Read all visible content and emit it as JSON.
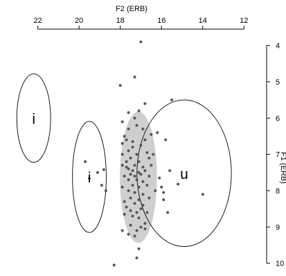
{
  "chart_data": {
    "type": "scatter",
    "xlabel": "F2 (ERB)",
    "ylabel": "F1 (ERB)",
    "x_axis_position": "top",
    "y_axis_position": "right",
    "x_reversed": true,
    "y_reversed": true,
    "xlim": [
      23.5,
      10.9
    ],
    "ylim": [
      3.55,
      10.35
    ],
    "x_ticks": [
      22,
      20,
      18,
      16,
      14,
      12
    ],
    "y_ticks": [
      4,
      5,
      6,
      7,
      8,
      9,
      10
    ],
    "grid": false,
    "ellipses": [
      {
        "label": "i",
        "cx": 22.2,
        "cy": 6.0,
        "rx": 0.82,
        "ry": 1.22,
        "shaded": false
      },
      {
        "label": "ɨ",
        "cx": 19.5,
        "cy": 7.62,
        "rx": 0.82,
        "ry": 1.53,
        "shaded": false
      },
      {
        "label": "u",
        "cx": 14.9,
        "cy": 7.52,
        "rx": 2.29,
        "ry": 2.02,
        "shaded": false
      },
      {
        "label": "",
        "cx": 17.12,
        "cy": 7.63,
        "rx": 0.9,
        "ry": 1.81,
        "shaded": true
      }
    ],
    "points": [
      [
        17.0,
        3.9
      ],
      [
        17.3,
        4.87
      ],
      [
        18.0,
        5.1
      ],
      [
        15.5,
        5.5
      ],
      [
        16.8,
        5.6
      ],
      [
        17.1,
        5.8
      ],
      [
        17.6,
        5.85
      ],
      [
        17.3,
        6.0
      ],
      [
        17.9,
        6.1
      ],
      [
        17.2,
        6.2
      ],
      [
        16.9,
        6.3
      ],
      [
        16.5,
        6.45
      ],
      [
        17.6,
        6.3
      ],
      [
        17.8,
        6.5
      ],
      [
        17.7,
        6.6
      ],
      [
        17.4,
        6.65
      ],
      [
        17.9,
        6.7
      ],
      [
        16.8,
        6.6
      ],
      [
        17.0,
        6.75
      ],
      [
        17.4,
        6.8
      ],
      [
        17.6,
        6.9
      ],
      [
        16.7,
        6.95
      ],
      [
        17.9,
        7.0
      ],
      [
        17.2,
        7.0
      ],
      [
        17.5,
        7.1
      ],
      [
        16.6,
        7.1
      ],
      [
        17.7,
        7.2
      ],
      [
        17.1,
        7.2
      ],
      [
        17.9,
        7.3
      ],
      [
        17.3,
        7.3
      ],
      [
        16.9,
        7.35
      ],
      [
        16.5,
        7.3
      ],
      [
        17.6,
        7.4
      ],
      [
        17.4,
        7.45
      ],
      [
        17.1,
        7.5
      ],
      [
        16.8,
        7.45
      ],
      [
        17.5,
        7.55
      ],
      [
        17.3,
        7.6
      ],
      [
        17.0,
        7.55
      ],
      [
        16.6,
        7.6
      ],
      [
        17.8,
        7.6
      ],
      [
        17.6,
        7.7
      ],
      [
        17.2,
        7.7
      ],
      [
        16.9,
        7.75
      ],
      [
        17.4,
        7.85
      ],
      [
        17.1,
        7.9
      ],
      [
        16.7,
        7.85
      ],
      [
        17.9,
        7.9
      ],
      [
        17.6,
        8.0
      ],
      [
        17.3,
        8.05
      ],
      [
        16.9,
        8.1
      ],
      [
        17.5,
        8.2
      ],
      [
        17.1,
        8.25
      ],
      [
        16.6,
        8.2
      ],
      [
        17.8,
        8.3
      ],
      [
        17.3,
        8.35
      ],
      [
        16.9,
        8.4
      ],
      [
        17.7,
        8.45
      ],
      [
        17.0,
        8.5
      ],
      [
        17.5,
        8.55
      ],
      [
        17.2,
        8.6
      ],
      [
        16.7,
        8.6
      ],
      [
        17.8,
        8.65
      ],
      [
        17.4,
        8.7
      ],
      [
        17.1,
        8.75
      ],
      [
        16.8,
        8.9
      ],
      [
        17.5,
        8.95
      ],
      [
        17.2,
        9.1
      ],
      [
        16.8,
        9.05
      ],
      [
        17.6,
        9.2
      ],
      [
        17.9,
        9.1
      ],
      [
        17.3,
        9.25
      ],
      [
        17.1,
        9.6
      ],
      [
        17.2,
        9.85
      ],
      [
        18.3,
        10.05
      ],
      [
        17.0,
        9.0
      ],
      [
        17.7,
        7.35
      ],
      [
        16.4,
        7.0
      ],
      [
        16.2,
        6.4
      ],
      [
        15.6,
        7.45
      ],
      [
        15.8,
        6.6
      ],
      [
        15.2,
        7.82
      ],
      [
        14.0,
        8.1
      ],
      [
        16.0,
        7.9
      ],
      [
        15.9,
        8.05
      ],
      [
        15.9,
        8.25
      ],
      [
        15.7,
        8.6
      ],
      [
        16.1,
        7.65
      ],
      [
        16.3,
        8.0
      ],
      [
        18.9,
        7.85
      ],
      [
        18.8,
        7.42
      ],
      [
        18.7,
        8.0
      ],
      [
        19.7,
        7.2
      ],
      [
        19.1,
        7.5
      ]
    ]
  }
}
